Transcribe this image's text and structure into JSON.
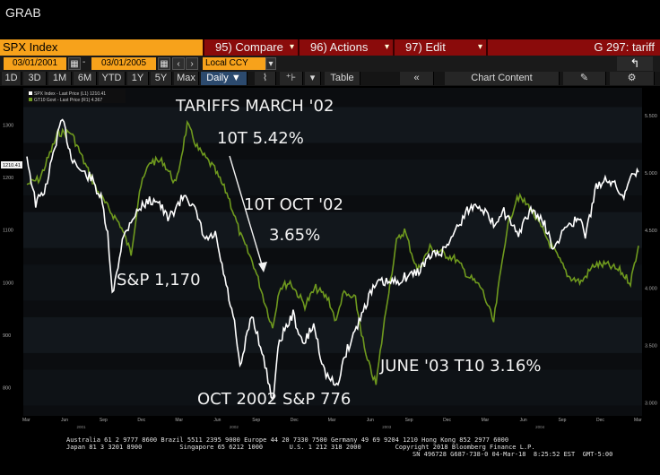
{
  "window_title": "GRAB",
  "command_bar": {
    "security": "SPX Index",
    "compare": "95) Compare",
    "actions": "96) Actions",
    "edit": "97) Edit",
    "page": "G 297: tariff"
  },
  "date_bar": {
    "start_date": "03/01/2001",
    "end_date": "03/01/2005",
    "currency": "Local CCY"
  },
  "toolbar": {
    "periods": [
      "1D",
      "3D",
      "1M",
      "6M",
      "YTD",
      "1Y",
      "5Y",
      "Max"
    ],
    "frequency": "Daily",
    "table_label": "Table",
    "chart_content_label": "Chart Content"
  },
  "legend": {
    "spx": "SPX Index - Last Price (L1) 1210.41",
    "gt10": "GT10 Govt - Last Price (R1) 4.367"
  },
  "last_value_tag": "1210.41",
  "annotations": {
    "tariffs": "TARIFFS MARCH '02",
    "t10_542": "10T 5.42%",
    "t10_oct": "10T OCT '02",
    "t10_365": "3.65%",
    "sp_1170": "S&P 1,170",
    "oct_2002": "OCT 2002 S&P 776",
    "june_03": "JUNE '03 T10 3.16%"
  },
  "footer": {
    "line1": "Australia 61 2 9777 8600 Brazil 5511 2395 9000 Europe 44 20 7330 7500 Germany 49 69 9204 1210 Hong Kong 852 2977 6000",
    "line2": "Japan 81 3 3201 8900          Singapore 65 6212 1000       U.S. 1 212 318 2000         Copyright 2018 Bloomberg Finance L.P.",
    "line3": "SN 496728 G687-738-0 04-Mar-18  8:25:52 EST  GMT-5:00"
  },
  "chart_data": {
    "type": "line",
    "x_month_ticks": [
      "Mar",
      "Jun",
      "Sep",
      "Dec",
      "Mar",
      "Jun",
      "Sep",
      "Dec",
      "Mar",
      "Jun",
      "Sep",
      "Dec",
      "Mar",
      "Jun",
      "Sep",
      "Dec",
      "Mar"
    ],
    "x_year_labels": [
      "2001",
      "2002",
      "2003",
      "2004",
      "2005"
    ],
    "y_left_ticks": [
      "1300",
      "1200",
      "1100",
      "1000",
      "900",
      "800"
    ],
    "y_right_ticks": [
      "5.500",
      "5.000",
      "4.500",
      "4.000",
      "3.500",
      "3.000"
    ],
    "y_left_lim": [
      760,
      1340
    ],
    "y_right_lim": [
      2.95,
      5.6
    ],
    "colors": {
      "spx": "#ffffff",
      "gt10": "#6f9a1e",
      "background": "#0b0d10"
    },
    "series": [
      {
        "name": "SPX Index - Last Price (L1) 1210.41",
        "axis": "left",
        "x": [
          "2001-03-01",
          "2001-03-22",
          "2001-04-15",
          "2001-05-10",
          "2001-05-25",
          "2001-06-15",
          "2001-07-10",
          "2001-08-01",
          "2001-08-25",
          "2001-09-10",
          "2001-09-21",
          "2001-10-15",
          "2001-11-05",
          "2001-12-05",
          "2002-01-05",
          "2002-02-01",
          "2002-03-15",
          "2002-04-10",
          "2002-05-01",
          "2002-05-25",
          "2002-06-20",
          "2002-07-10",
          "2002-07-23",
          "2002-08-20",
          "2002-09-10",
          "2002-10-09",
          "2002-10-25",
          "2002-11-27",
          "2002-12-20",
          "2003-01-15",
          "2003-02-10",
          "2003-03-11",
          "2003-03-30",
          "2003-04-30",
          "2003-05-30",
          "2003-06-20",
          "2003-07-25",
          "2003-08-20",
          "2003-09-20",
          "2003-10-20",
          "2003-11-20",
          "2003-12-20",
          "2004-01-20",
          "2004-02-15",
          "2004-03-20",
          "2004-04-10",
          "2004-05-15",
          "2004-06-20",
          "2004-07-20",
          "2004-08-12",
          "2004-09-10",
          "2004-10-10",
          "2004-10-25",
          "2004-11-20",
          "2004-12-15",
          "2005-01-10",
          "2005-01-25",
          "2005-02-10",
          "2005-03-01"
        ],
        "values": [
          1240,
          1150,
          1180,
          1270,
          1310,
          1240,
          1210,
          1200,
          1160,
          1090,
          975,
          1080,
          1120,
          1150,
          1160,
          1120,
          1170,
          1130,
          1080,
          1090,
          995,
          920,
          835,
          940,
          880,
          776,
          890,
          940,
          880,
          920,
          830,
          800,
          860,
          920,
          980,
          1000,
          1000,
          1010,
          1020,
          1050,
          1060,
          1100,
          1140,
          1150,
          1110,
          1140,
          1090,
          1140,
          1110,
          1060,
          1110,
          1120,
          1090,
          1180,
          1200,
          1180,
          1160,
          1210,
          1210
        ]
      },
      {
        "name": "GT10 Govt - Last Price (R1) 4.367",
        "axis": "right",
        "x": [
          "2001-03-01",
          "2001-04-01",
          "2001-05-15",
          "2001-06-15",
          "2001-07-15",
          "2001-08-15",
          "2001-09-10",
          "2001-10-10",
          "2001-11-05",
          "2001-11-25",
          "2001-12-20",
          "2002-01-20",
          "2002-02-20",
          "2002-03-19",
          "2002-04-15",
          "2002-05-20",
          "2002-06-25",
          "2002-07-25",
          "2002-08-25",
          "2002-10-09",
          "2002-10-25",
          "2002-11-20",
          "2002-12-25",
          "2003-01-20",
          "2003-02-20",
          "2003-03-10",
          "2003-03-25",
          "2003-04-25",
          "2003-05-20",
          "2003-06-13",
          "2003-07-10",
          "2003-08-01",
          "2003-08-20",
          "2003-09-20",
          "2003-10-20",
          "2003-11-20",
          "2003-12-20",
          "2004-01-20",
          "2004-02-20",
          "2004-03-20",
          "2004-04-20",
          "2004-05-15",
          "2004-06-15",
          "2004-07-15",
          "2004-08-15",
          "2004-09-15",
          "2004-10-15",
          "2004-11-15",
          "2004-12-15",
          "2005-01-15",
          "2005-02-10",
          "2005-03-01"
        ],
        "values": [
          4.9,
          4.95,
          5.35,
          5.35,
          5.1,
          4.85,
          4.7,
          4.55,
          4.3,
          4.85,
          5.1,
          5.1,
          4.9,
          5.42,
          5.2,
          5.05,
          4.8,
          4.45,
          4.2,
          3.65,
          4.0,
          4.05,
          3.85,
          4.0,
          3.9,
          3.7,
          3.95,
          3.9,
          3.4,
          3.16,
          3.9,
          4.4,
          4.5,
          4.15,
          4.35,
          4.3,
          4.25,
          4.1,
          4.0,
          3.7,
          4.5,
          4.8,
          4.7,
          4.5,
          4.3,
          4.1,
          4.05,
          4.2,
          4.2,
          4.15,
          4.05,
          4.367
        ]
      }
    ]
  }
}
